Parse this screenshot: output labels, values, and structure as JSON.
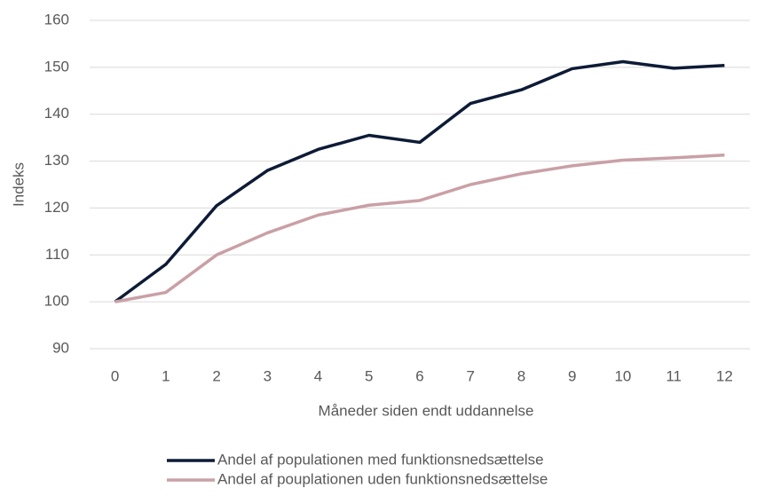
{
  "chart_data": {
    "type": "line",
    "x_label": "Måneder siden endt uddannelse",
    "y_label": "Indeks",
    "categories": [
      0,
      1,
      2,
      3,
      4,
      5,
      6,
      7,
      8,
      9,
      10,
      11,
      12
    ],
    "series": [
      {
        "name": "Andel af populationen med funktionsnedsættelse",
        "color": "#0d1b36",
        "values": [
          100,
          108,
          120.5,
          128,
          132.5,
          135.5,
          134,
          142.3,
          145.2,
          149.7,
          151.2,
          149.8,
          150.4
        ]
      },
      {
        "name": "Andel af pouplationen uden funktionsnedsættelse",
        "color": "#c9a0a6",
        "values": [
          100,
          102,
          110,
          114.7,
          118.5,
          120.6,
          121.6,
          125,
          127.3,
          129,
          130.2,
          130.7,
          131.3
        ]
      }
    ],
    "ylim": [
      90,
      160
    ],
    "yticks": [
      90,
      100,
      110,
      120,
      130,
      140,
      150,
      160
    ],
    "grid": true,
    "legend": "bottom"
  }
}
